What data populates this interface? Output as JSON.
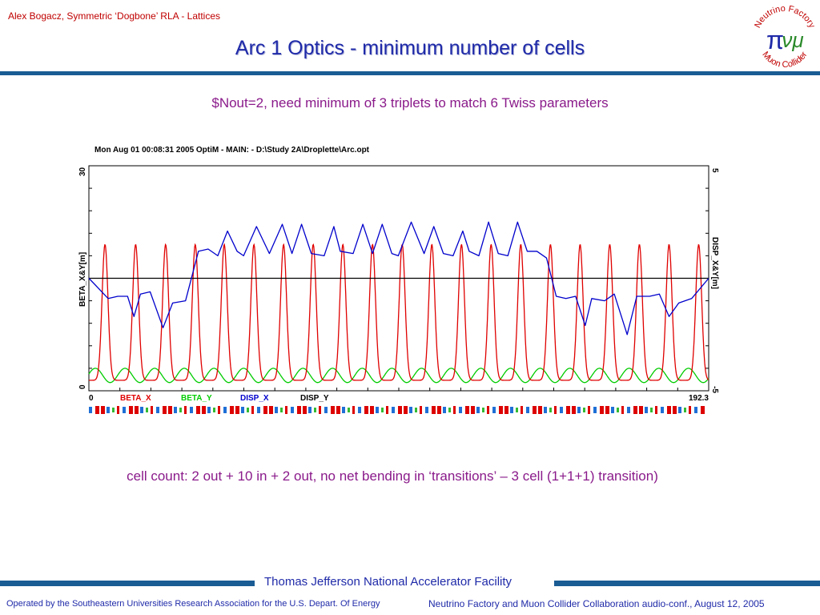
{
  "header": {
    "author": "Alex Bogacz, Symmetric ‘Dogbone’ RLA - Lattices",
    "title": "Arc 1 Optics - minimum number of cells",
    "subtitle": "$Nout=2, need minimum of 3 triplets to match 6 Twiss parameters"
  },
  "logo": {
    "top": "Neutrino Factory",
    "bottom": "Muon Collider",
    "symbol": "π",
    "letters": "νμ"
  },
  "caption": "cell count: 2 out + 10 in + 2 out, no net bending in ‘transitions’  – 3 cell (1+1+1) transition)",
  "footer": {
    "lab": "Thomas Jefferson National Accelerator Facility",
    "left": "Operated by the Southeastern Universities Research Association for the U.S. Depart. Of Energy",
    "right": "Neutrino Factory and Muon Collider Collaboration audio-conf., August 12, 2005"
  },
  "chart_data": {
    "type": "line",
    "header": "Mon Aug 01 00:08:31 2005    OptiM - MAIN: - D:\\Study 2A\\Droplette\\Arc.opt",
    "ylabel_left": "BETA_X&Y[m]",
    "ylabel_right": "DISP_X&Y[m]",
    "xlim": [
      0,
      192.3
    ],
    "ylim_left": [
      0,
      30
    ],
    "ylim_right": [
      -5,
      5
    ],
    "x_tick_labels": [
      "0",
      "192.3"
    ],
    "y_left_tick_labels": [
      "0",
      "30"
    ],
    "y_right_tick_labels": [
      "-5",
      "5"
    ],
    "legend": [
      "BETA_X",
      "BETA_Y",
      "DISP_X",
      "DISP_Y"
    ],
    "colors": {
      "BETA_X": "#e00000",
      "BETA_Y": "#00cc00",
      "DISP_X": "#0000cc",
      "DISP_Y": "#000000"
    },
    "series": [
      {
        "name": "BETA_X",
        "peak_x": [
          5.0,
          14.5,
          23.8,
          33.0,
          42.0,
          51.2,
          60.4,
          69.6,
          78.8,
          88.0,
          97.2,
          106.4,
          115.6,
          124.8,
          134.0,
          143.2,
          152.4,
          161.6,
          170.8,
          180.0,
          189.2
        ],
        "peak_value": 19.5,
        "min_value": 1.4
      },
      {
        "name": "BETA_Y",
        "min_value": 1.1,
        "max_value": 3.0
      },
      {
        "name": "DISP_X",
        "x": [
          0,
          6,
          9,
          12,
          14,
          16,
          19,
          23,
          26,
          30,
          34,
          37,
          40,
          43,
          46,
          48,
          52,
          56,
          60,
          63,
          66,
          69,
          73,
          76,
          78,
          82,
          85,
          88,
          91,
          94,
          96,
          100,
          104,
          107,
          110,
          113,
          116,
          118,
          121,
          124,
          127,
          130,
          133,
          136,
          139,
          142,
          145,
          148,
          151,
          154,
          156,
          160,
          163,
          167,
          170,
          174,
          177,
          180,
          183,
          187,
          192.3
        ],
        "values": [
          0.0,
          -0.9,
          -0.8,
          -0.8,
          -1.7,
          -0.7,
          -0.6,
          -2.2,
          -1.1,
          -1.0,
          1.2,
          1.3,
          1.0,
          2.1,
          1.2,
          1.0,
          2.3,
          1.1,
          2.4,
          1.1,
          2.4,
          1.1,
          1.0,
          2.3,
          1.2,
          1.1,
          2.4,
          1.1,
          2.4,
          1.1,
          1.0,
          2.5,
          1.1,
          2.3,
          1.1,
          1.0,
          2.1,
          1.2,
          1.0,
          2.5,
          1.1,
          1.0,
          2.5,
          1.2,
          1.2,
          0.9,
          -0.8,
          -0.9,
          -0.8,
          -2.1,
          -0.9,
          -1.0,
          -0.7,
          -2.5,
          -0.8,
          -0.8,
          -0.7,
          -1.7,
          -1.1,
          -0.9,
          0.0
        ]
      },
      {
        "name": "DISP_Y",
        "x": [
          0,
          192.3
        ],
        "values": [
          0,
          0
        ]
      }
    ]
  }
}
